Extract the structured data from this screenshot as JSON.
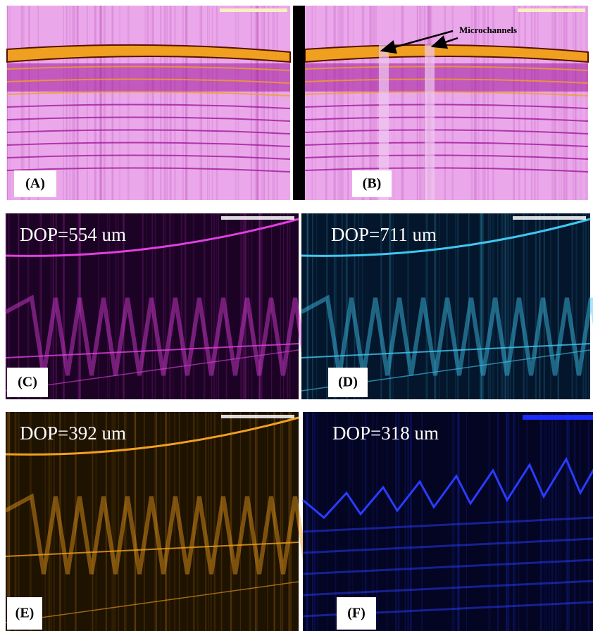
{
  "panels": [
    {
      "label": "(A)"
    },
    {
      "label": "(B)",
      "annotation": "Microchannels"
    },
    {
      "label": "(C)",
      "caption": "DOP=554 um"
    },
    {
      "label": "(D)",
      "caption": "DOP=711 um"
    },
    {
      "label": "(E)",
      "caption": "DOP=392 um"
    },
    {
      "label": "(F)",
      "caption": "DOP=318 um"
    }
  ]
}
